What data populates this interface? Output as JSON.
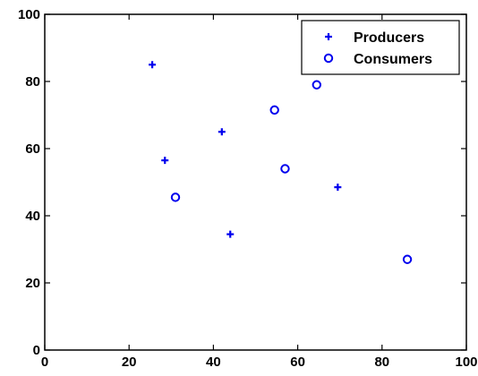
{
  "colors": {
    "marker": "#0000ee",
    "axis": "#000000",
    "background": "#ffffff"
  },
  "chart_data": {
    "type": "scatter",
    "title": "",
    "xlabel": "",
    "ylabel": "",
    "xlim": [
      0,
      100
    ],
    "ylim": [
      0,
      100
    ],
    "x_ticks": [
      0,
      20,
      40,
      60,
      80,
      100
    ],
    "y_ticks": [
      0,
      20,
      40,
      60,
      80,
      100
    ],
    "x_tick_labels": [
      "0",
      "20",
      "40",
      "60",
      "80",
      "100"
    ],
    "y_tick_labels": [
      "0",
      "20",
      "40",
      "60",
      "80",
      "100"
    ],
    "grid": false,
    "legend_position": "top-right",
    "series": [
      {
        "name": "Producers",
        "marker": "plus",
        "points": [
          {
            "x": 25.5,
            "y": 85
          },
          {
            "x": 28.5,
            "y": 56.5
          },
          {
            "x": 42,
            "y": 65
          },
          {
            "x": 44,
            "y": 34.5
          },
          {
            "x": 69.5,
            "y": 48.5
          }
        ]
      },
      {
        "name": "Consumers",
        "marker": "circle",
        "points": [
          {
            "x": 31,
            "y": 45.5
          },
          {
            "x": 54.5,
            "y": 71.5
          },
          {
            "x": 57,
            "y": 54
          },
          {
            "x": 64.5,
            "y": 79
          },
          {
            "x": 86,
            "y": 27
          }
        ]
      }
    ]
  }
}
